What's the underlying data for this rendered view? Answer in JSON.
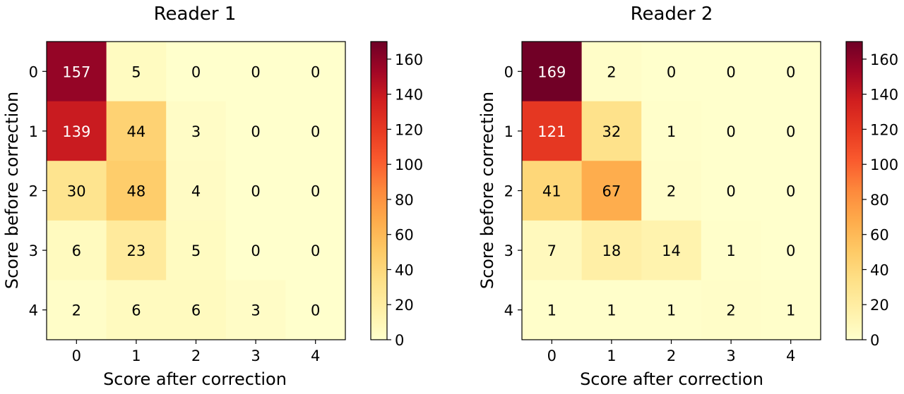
{
  "chart_data": [
    {
      "type": "heatmap",
      "title": "Reader 1",
      "xlabel": "Score after correction",
      "ylabel": "Score before correction",
      "x_ticks": [
        "0",
        "1",
        "2",
        "3",
        "4"
      ],
      "y_ticks": [
        "0",
        "1",
        "2",
        "3",
        "4"
      ],
      "values": [
        [
          157,
          5,
          0,
          0,
          0
        ],
        [
          139,
          44,
          3,
          0,
          0
        ],
        [
          30,
          48,
          4,
          0,
          0
        ],
        [
          6,
          23,
          5,
          0,
          0
        ],
        [
          2,
          6,
          6,
          3,
          0
        ]
      ],
      "colormap": "YlOrRd",
      "colorbar": {
        "range": [
          0,
          170
        ],
        "ticks": [
          "0",
          "20",
          "40",
          "60",
          "80",
          "100",
          "120",
          "140",
          "160"
        ]
      }
    },
    {
      "type": "heatmap",
      "title": "Reader 2",
      "xlabel": "Score after correction",
      "ylabel": "Score before correction",
      "x_ticks": [
        "0",
        "1",
        "2",
        "3",
        "4"
      ],
      "y_ticks": [
        "0",
        "1",
        "2",
        "3",
        "4"
      ],
      "values": [
        [
          169,
          2,
          0,
          0,
          0
        ],
        [
          121,
          32,
          1,
          0,
          0
        ],
        [
          41,
          67,
          2,
          0,
          0
        ],
        [
          7,
          18,
          14,
          1,
          0
        ],
        [
          1,
          1,
          1,
          2,
          1
        ]
      ],
      "colormap": "YlOrRd",
      "colorbar": {
        "range": [
          0,
          170
        ],
        "ticks": [
          "0",
          "20",
          "40",
          "60",
          "80",
          "100",
          "120",
          "140",
          "160"
        ]
      }
    }
  ],
  "colors": {
    "stops": [
      "#ffffcc",
      "#fff0a8",
      "#fee087",
      "#fec965",
      "#feab4b",
      "#fd893c",
      "#fa5b2e",
      "#e83a22",
      "#d11f1f",
      "#a10626",
      "#6e0026"
    ]
  }
}
